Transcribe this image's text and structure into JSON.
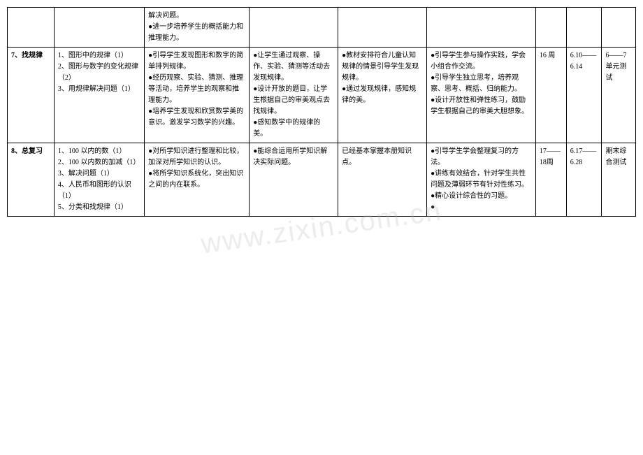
{
  "watermark": "www.zixin.com.cn",
  "rows": [
    {
      "col1": "",
      "col2": "",
      "col3": "解决问题。\n●进一步培养学生的概括能力和推理能力。",
      "col4": "",
      "col5": "",
      "col6": "",
      "col7": "",
      "col8": "",
      "col9": ""
    },
    {
      "col1": "7、找规律",
      "col2": "1、图形中的规律（1）\n2、图形与数字的变化规律（2）\n3、用规律解决问题（1）",
      "col3": "●引导学生发现图形和数字的简单排列规律。\n●经历观察、实验、猜测、推理等活动，培养学生的观察和推理能力。\n●培养学生发现和欣赏数学美的意识。激发学习数学的兴趣。",
      "col4": "●让学生通过观察、操作、实验、猜测等活动去发现规律。\n●设计开放的题目，让学生根据自己的审美观点去找规律。\n●感知数学中的规律的美。",
      "col5": "●教材安排符合儿童认知规律的情景引导学生发现规律。\n●通过发现规律，感知规律的美。",
      "col6": "●引导学生参与操作实践，学会小组合作交流。\n●引导学生独立思考，培养观察、思考、概括、归纳能力。\n●设计开放性和弹性练习，鼓励学生根据自己的审美大胆想象。",
      "col7": "16 周",
      "col8": "6.10——6.14",
      "col9": "6——7单元测试"
    },
    {
      "col1": "8、总复习",
      "col2": "1、100 以内的数（1）\n2、100 以内数的加减（1）\n3、解决问题（1）\n4、人民币和图形的认识（1）\n5、分类和找规律（1）",
      "col3": "●对所学知识进行整理和比较，加深对所学知识的认识。\n●将所学知识系统化，突出知识之间的内在联系。",
      "col4": "●能综合运用所学知识解决实际问题。",
      "col5": "已经基本掌握本册知识点。",
      "col6": "●引导学生学会整理复习的方法。\n●讲练有效结合，针对学生共性问题及薄弱环节有针对性练习。\n●精心设计综合性的习题。\n●",
      "col7": "17——18周",
      "col8": "6.17——6.28",
      "col9": "期末综合测试"
    }
  ],
  "colWidths": [
    "58px",
    "112px",
    "130px",
    "110px",
    "110px",
    "135px",
    "38px",
    "44px",
    "42px"
  ]
}
